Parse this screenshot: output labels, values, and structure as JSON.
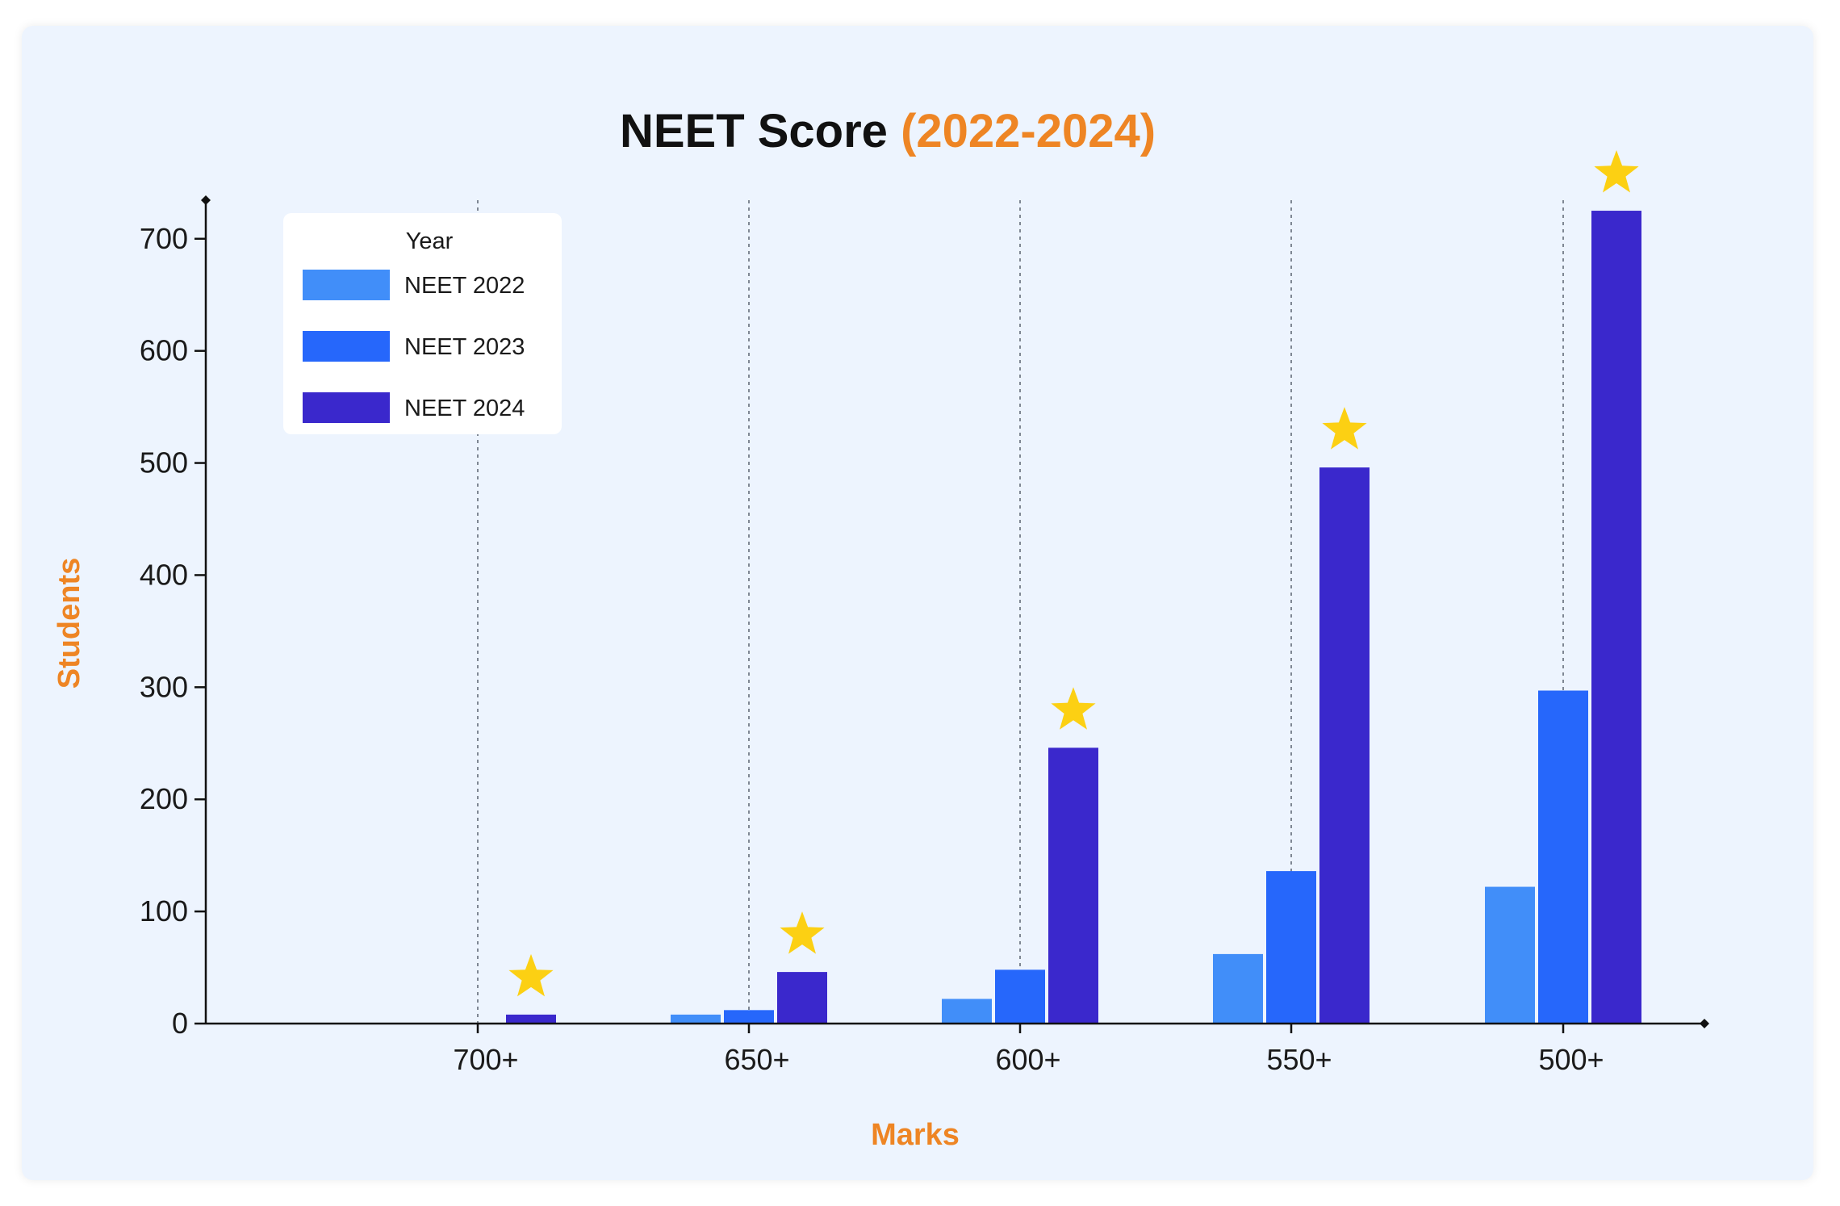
{
  "chart_data": {
    "type": "bar",
    "title": "NEET Score",
    "title_accent": "(2022-2024)",
    "xlabel": "Marks",
    "ylabel": "Students",
    "categories": [
      "700+",
      "650+",
      "600+",
      "550+",
      "500+"
    ],
    "yticks": [
      "0",
      "100",
      "200",
      "300",
      "400",
      "500",
      "600",
      "700"
    ],
    "ylim": [
      0,
      750
    ],
    "grid": "vertical-dotted",
    "legend": {
      "title": "Year",
      "position": "top-left"
    },
    "series": [
      {
        "name": "NEET 2022",
        "color": "#418ef9",
        "values": [
          0,
          8,
          22,
          62,
          122
        ]
      },
      {
        "name": "NEET 2023",
        "color": "#2667fb",
        "values": [
          0,
          12,
          48,
          136,
          297
        ]
      },
      {
        "name": "NEET 2024",
        "color": "#3a28cc",
        "values": [
          8,
          46,
          246,
          496,
          725
        ]
      }
    ],
    "markers": {
      "icon": "star-icon",
      "color": "#fcd013",
      "series": "NEET 2024"
    }
  }
}
